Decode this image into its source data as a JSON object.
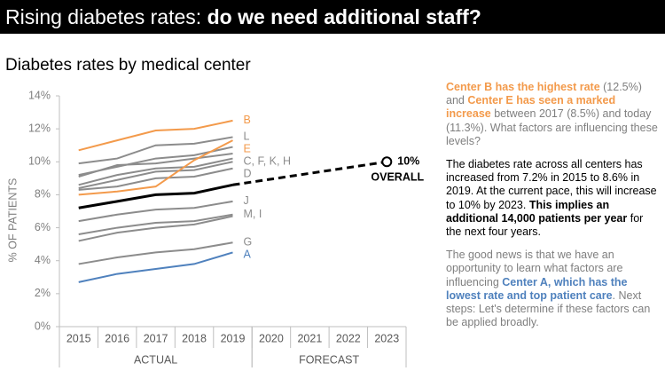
{
  "chart_data": {
    "type": "line",
    "title_parts": [
      "Rising diabetes rates: ",
      "do we need additional staff?"
    ],
    "subtitle": "Diabetes rates by medical center",
    "y_label": "% OF PATIENTS",
    "categories": [
      "2015",
      "2016",
      "2017",
      "2018",
      "2019",
      "2020",
      "2021",
      "2022",
      "2023"
    ],
    "x_groups": [
      {
        "label": "ACTUAL",
        "from": "2015",
        "to": "2019"
      },
      {
        "label": "FORECAST",
        "from": "2020",
        "to": "2023"
      }
    ],
    "ylim": [
      0,
      14
    ],
    "yticks": [
      {
        "value": 0,
        "label": "0%"
      },
      {
        "value": 2,
        "label": "2%"
      },
      {
        "value": 4,
        "label": "4%"
      },
      {
        "value": 6,
        "label": "6%"
      },
      {
        "value": 8,
        "label": "8%"
      },
      {
        "value": 10,
        "label": "10%"
      },
      {
        "value": 12,
        "label": "12%"
      },
      {
        "value": 14,
        "label": "14%"
      }
    ],
    "series": [
      {
        "label": "L",
        "color": "#8c8c8c",
        "values": [
          9.9,
          10.2,
          11.0,
          11.1,
          11.5,
          null,
          null,
          null,
          null
        ]
      },
      {
        "label": "C, F, K, H",
        "color": "#8c8c8c",
        "values": [
          9.2,
          9.7,
          10.2,
          10.4,
          10.9,
          null,
          null,
          null,
          null
        ]
      },
      {
        "color": "#8c8c8c",
        "values": [
          9.1,
          9.8,
          9.9,
          10.2,
          10.5,
          null,
          null,
          null,
          null
        ]
      },
      {
        "color": "#8c8c8c",
        "values": [
          8.6,
          9.2,
          9.6,
          9.7,
          10.2,
          null,
          null,
          null,
          null
        ]
      },
      {
        "color": "#8c8c8c",
        "values": [
          8.4,
          8.9,
          9.4,
          9.5,
          10.0,
          null,
          null,
          null,
          null
        ]
      },
      {
        "label": "D",
        "color": "#8c8c8c",
        "values": [
          8.3,
          8.5,
          9.0,
          9.1,
          9.6,
          null,
          null,
          null,
          null
        ]
      },
      {
        "label": "J",
        "color": "#8c8c8c",
        "values": [
          6.4,
          6.8,
          7.1,
          7.2,
          7.6,
          null,
          null,
          null,
          null
        ]
      },
      {
        "label": "M, I",
        "color": "#8c8c8c",
        "values": [
          5.6,
          6.0,
          6.3,
          6.4,
          6.8,
          null,
          null,
          null,
          null
        ]
      },
      {
        "color": "#8c8c8c",
        "values": [
          5.2,
          5.7,
          6.0,
          6.2,
          6.7,
          null,
          null,
          null,
          null
        ]
      },
      {
        "label": "G",
        "color": "#8c8c8c",
        "values": [
          3.8,
          4.2,
          4.5,
          4.7,
          5.1,
          null,
          null,
          null,
          null
        ]
      },
      {
        "label": "B",
        "color": "#f39a4b",
        "values": [
          10.7,
          11.3,
          11.9,
          12.0,
          12.5,
          null,
          null,
          null,
          null
        ]
      },
      {
        "label": "E",
        "color": "#f39a4b",
        "values": [
          8.0,
          8.2,
          8.5,
          10.1,
          11.3,
          null,
          null,
          null,
          null
        ]
      },
      {
        "label": "A",
        "color": "#4f81bd",
        "values": [
          2.7,
          3.2,
          3.5,
          3.8,
          4.5,
          null,
          null,
          null,
          null
        ]
      },
      {
        "label": "OVERALL",
        "color": "#000000",
        "overall": true,
        "values": [
          7.2,
          7.6,
          8.0,
          8.1,
          8.6,
          null,
          null,
          null,
          10
        ],
        "value_labels": [
          null,
          null,
          null,
          null,
          null,
          null,
          null,
          null,
          "10%"
        ]
      }
    ],
    "notes": [
      {
        "color": "gray",
        "runs": [
          {
            "text": "Center B has the highest rate",
            "style": "orange"
          },
          {
            "text": " (12.5%) and "
          },
          {
            "text": "Center E has seen a marked increase",
            "style": "orange"
          },
          {
            "text": " between 2017 (8.5%) and today (11.3%). What factors are influencing these levels?"
          }
        ]
      },
      {
        "color": "black",
        "runs": [
          {
            "text": "The diabetes rate across all centers has increased from 7.2% in 2015 to 8.6% in 2019. At the current pace, this will increase to 10% by 2023. "
          },
          {
            "text": "This implies an additional 14,000 patients per year",
            "style": "bold"
          },
          {
            "text": " for the next four years."
          }
        ]
      },
      {
        "color": "gray",
        "runs": [
          {
            "text": "The good news is that we have an opportunity to learn what factors are influencing "
          },
          {
            "text": "Center A, which has the lowest rate and top patient care",
            "style": "blue"
          },
          {
            "text": ". Next steps: Let's determine if these factors can be applied broadly."
          }
        ]
      }
    ]
  }
}
